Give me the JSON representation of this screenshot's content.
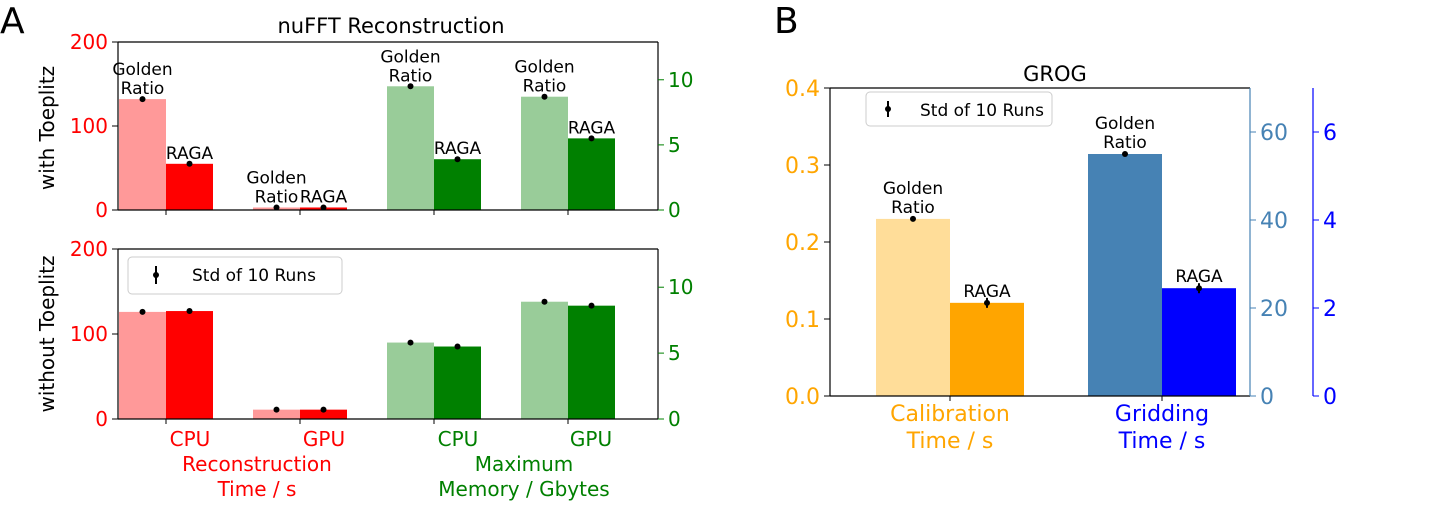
{
  "panel_labels": {
    "a": "A",
    "b": "B"
  },
  "colors": {
    "cpu_gr": "#ff9999",
    "cpu_raga": "#ff0000",
    "gpu_mem_gr": "#99cc99",
    "gpu_mem_raga": "#008000",
    "calib_gr": "#ffdd99",
    "calib_raga": "#ffa500",
    "grid_gr": "#4682b4",
    "grid_raga": "#0000ff",
    "red_axis": "#ff0000",
    "green_axis": "#008000",
    "orange_axis": "#ffa500",
    "steel_axis": "#4682b4",
    "blue_axis": "#0000ff"
  },
  "chart_data": [
    {
      "id": "A-top",
      "type": "bar",
      "title": "nuFFT Reconstruction",
      "ylabel": "with Toeplitz",
      "categories": [
        "CPU",
        "GPU",
        "CPU",
        "GPU"
      ],
      "bar_labels": {
        "golden": [
          "Golden",
          "Ratio"
        ],
        "raga": "RAGA"
      },
      "left_axis": {
        "ylim": [
          0,
          200
        ],
        "ticks": [
          "0",
          "100",
          "200"
        ]
      },
      "right_axis": {
        "ylim": [
          0,
          12.9
        ],
        "ticks": [
          "0",
          "5",
          "10"
        ]
      },
      "series": [
        {
          "name": "Golden Ratio",
          "values_left": [
            132,
            3
          ],
          "values_right": [
            9.5,
            8.7
          ]
        },
        {
          "name": "RAGA",
          "values_left": [
            55,
            3
          ],
          "values_right": [
            3.9,
            5.5
          ]
        }
      ]
    },
    {
      "id": "A-bottom",
      "type": "bar",
      "ylabel": "without Toeplitz",
      "legend": {
        "label": "Std of 10 Runs",
        "placement": "upper-left"
      },
      "left_axis": {
        "ylim": [
          0,
          200
        ],
        "ticks": [
          "0",
          "100",
          "200"
        ]
      },
      "right_axis": {
        "ylim": [
          0,
          12.9
        ],
        "ticks": [
          "0",
          "5",
          "10"
        ]
      },
      "series": [
        {
          "name": "Golden Ratio",
          "values_left": [
            126,
            11
          ],
          "values_right": [
            5.8,
            8.9
          ]
        },
        {
          "name": "RAGA",
          "values_left": [
            127,
            11
          ],
          "values_right": [
            5.5,
            8.6
          ]
        }
      ],
      "xtick_labels": [
        "CPU",
        "GPU",
        "CPU",
        "GPU"
      ],
      "xgroup_labels": [
        {
          "lines": [
            "Reconstruction",
            "Time / s"
          ],
          "color": "red"
        },
        {
          "lines": [
            "Maximum",
            "Memory / Gbytes"
          ],
          "color": "green"
        }
      ]
    },
    {
      "id": "B",
      "type": "bar",
      "title": "GROG",
      "legend": {
        "label": "Std of 10 Runs",
        "placement": "upper-left"
      },
      "axes": [
        {
          "ylim": [
            0,
            0.4
          ],
          "ticks": [
            "0.0",
            "0.1",
            "0.2",
            "0.3",
            "0.4"
          ],
          "color": "orange"
        },
        {
          "ylim": [
            0,
            70
          ],
          "ticks": [
            "0",
            "20",
            "40",
            "60"
          ],
          "color": "steelblue"
        },
        {
          "ylim": [
            0,
            7
          ],
          "ticks": [
            "0",
            "2",
            "4",
            "6"
          ],
          "color": "blue"
        }
      ],
      "categories": [
        {
          "lines": [
            "Calibration",
            "Time / s"
          ],
          "color": "orange"
        },
        {
          "lines": [
            "Gridding",
            "Time / s"
          ],
          "color": "blue"
        }
      ],
      "series": [
        {
          "name": "Golden Ratio",
          "calibration": 0.23,
          "gridding": 55
        },
        {
          "name": "RAGA",
          "calibration": 0.121,
          "gridding": 24.5
        }
      ],
      "bar_labels": {
        "golden": [
          "Golden",
          "Ratio"
        ],
        "raga": "RAGA"
      }
    }
  ]
}
